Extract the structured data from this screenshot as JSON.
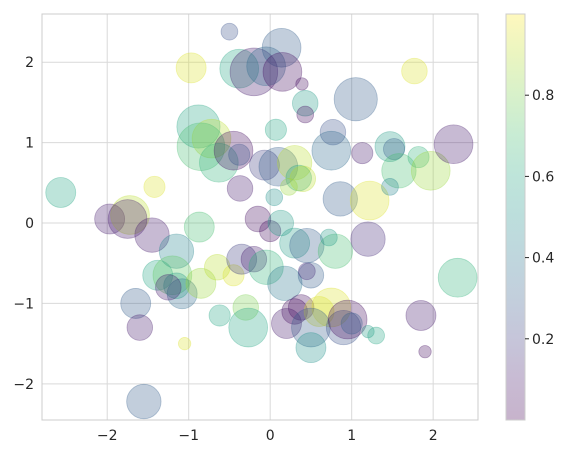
{
  "chart_data": {
    "type": "scatter",
    "title": "",
    "xlabel": "",
    "ylabel": "",
    "xlim": [
      -2.8,
      2.55
    ],
    "ylim": [
      -2.45,
      2.6
    ],
    "xticks": [
      "−2",
      "−1",
      "0",
      "1",
      "2"
    ],
    "xtick_values": [
      -2,
      -1,
      0,
      1,
      2
    ],
    "yticks": [
      "−2",
      "−1",
      "0",
      "1",
      "2"
    ],
    "ytick_values": [
      -2,
      -1,
      0,
      1,
      2
    ],
    "grid": true,
    "colormap": "viridis",
    "alpha": 0.3,
    "colorbar": {
      "ticks": [
        "0.2",
        "0.4",
        "0.6",
        "0.8"
      ],
      "tick_values": [
        0.2,
        0.4,
        0.6,
        0.8
      ],
      "range": [
        0.0,
        1.0
      ]
    },
    "points": [
      {
        "x": -0.97,
        "y": 1.93,
        "size": 5,
        "color": 0.95
      },
      {
        "x": -0.5,
        "y": 2.38,
        "size": 2,
        "color": 0.25
      },
      {
        "x": -0.38,
        "y": 1.92,
        "size": 7,
        "color": 0.6
      },
      {
        "x": -0.2,
        "y": 1.88,
        "size": 9,
        "color": 0.1
      },
      {
        "x": -0.05,
        "y": 1.95,
        "size": 7,
        "color": 0.35
      },
      {
        "x": 0.14,
        "y": 2.18,
        "size": 7,
        "color": 0.3
      },
      {
        "x": 0.15,
        "y": 1.88,
        "size": 7,
        "color": 0.05
      },
      {
        "x": 0.39,
        "y": 1.73,
        "size": 1,
        "color": 0.05
      },
      {
        "x": 0.43,
        "y": 1.49,
        "size": 4,
        "color": 0.55
      },
      {
        "x": 0.43,
        "y": 1.35,
        "size": 2,
        "color": 0.05
      },
      {
        "x": 1.05,
        "y": 1.54,
        "size": 8,
        "color": 0.3
      },
      {
        "x": 1.77,
        "y": 1.89,
        "size": 4,
        "color": 0.95
      },
      {
        "x": -0.88,
        "y": 1.2,
        "size": 8,
        "color": 0.6
      },
      {
        "x": -0.72,
        "y": 1.05,
        "size": 7,
        "color": 0.9
      },
      {
        "x": -0.85,
        "y": 0.95,
        "size": 9,
        "color": 0.7
      },
      {
        "x": -0.63,
        "y": 0.75,
        "size": 7,
        "color": 0.65
      },
      {
        "x": -0.45,
        "y": 0.9,
        "size": 7,
        "color": 0.05
      },
      {
        "x": -0.38,
        "y": 0.85,
        "size": 3,
        "color": 0.25
      },
      {
        "x": 0.07,
        "y": 1.16,
        "size": 3,
        "color": 0.6
      },
      {
        "x": -0.07,
        "y": 0.72,
        "size": 5,
        "color": 0.2
      },
      {
        "x": 0.1,
        "y": 0.7,
        "size": 7,
        "color": 0.3
      },
      {
        "x": 0.3,
        "y": 0.75,
        "size": 6,
        "color": 0.9
      },
      {
        "x": 0.35,
        "y": 0.56,
        "size": 4,
        "color": 0.6
      },
      {
        "x": 0.4,
        "y": 0.55,
        "size": 4,
        "color": 0.9
      },
      {
        "x": 0.77,
        "y": 1.13,
        "size": 4,
        "color": 0.25
      },
      {
        "x": 0.75,
        "y": 0.9,
        "size": 7,
        "color": 0.35
      },
      {
        "x": 1.13,
        "y": 0.87,
        "size": 3,
        "color": 0.1
      },
      {
        "x": 1.47,
        "y": 0.95,
        "size": 5,
        "color": 0.55
      },
      {
        "x": 1.52,
        "y": 0.92,
        "size": 3,
        "color": 0.3
      },
      {
        "x": 1.58,
        "y": 0.65,
        "size": 6,
        "color": 0.7
      },
      {
        "x": 1.82,
        "y": 0.82,
        "size": 3,
        "color": 0.65
      },
      {
        "x": 1.97,
        "y": 0.65,
        "size": 7,
        "color": 0.85
      },
      {
        "x": 2.25,
        "y": 0.98,
        "size": 7,
        "color": 0.1
      },
      {
        "x": -2.57,
        "y": 0.38,
        "size": 5,
        "color": 0.6
      },
      {
        "x": -1.42,
        "y": 0.45,
        "size": 3,
        "color": 0.95
      },
      {
        "x": -0.37,
        "y": 0.43,
        "size": 4,
        "color": 0.1
      },
      {
        "x": 0.05,
        "y": 0.32,
        "size": 2,
        "color": 0.5
      },
      {
        "x": 0.23,
        "y": 0.45,
        "size": 2,
        "color": 0.85
      },
      {
        "x": 0.86,
        "y": 0.3,
        "size": 6,
        "color": 0.3
      },
      {
        "x": 1.22,
        "y": 0.28,
        "size": 7,
        "color": 0.95
      },
      {
        "x": 1.47,
        "y": 0.45,
        "size": 2,
        "color": 0.45
      },
      {
        "x": -1.97,
        "y": 0.05,
        "size": 5,
        "color": 0.1
      },
      {
        "x": -1.72,
        "y": 0.1,
        "size": 7,
        "color": 0.9
      },
      {
        "x": -1.75,
        "y": 0.05,
        "size": 7,
        "color": 0.1
      },
      {
        "x": -1.45,
        "y": -0.15,
        "size": 6,
        "color": 0.1
      },
      {
        "x": -1.15,
        "y": -0.35,
        "size": 6,
        "color": 0.45
      },
      {
        "x": -0.87,
        "y": -0.05,
        "size": 5,
        "color": 0.7
      },
      {
        "x": -0.15,
        "y": 0.05,
        "size": 4,
        "color": 0.05
      },
      {
        "x": 0.0,
        "y": -0.1,
        "size": 3,
        "color": 0.05
      },
      {
        "x": 0.13,
        "y": 0.0,
        "size": 4,
        "color": 0.55
      },
      {
        "x": 0.3,
        "y": -0.25,
        "size": 5,
        "color": 0.55
      },
      {
        "x": 0.45,
        "y": -0.28,
        "size": 6,
        "color": 0.3
      },
      {
        "x": 0.8,
        "y": -0.35,
        "size": 6,
        "color": 0.7
      },
      {
        "x": 1.2,
        "y": -0.2,
        "size": 6,
        "color": 0.15
      },
      {
        "x": 0.72,
        "y": -0.18,
        "size": 2,
        "color": 0.55
      },
      {
        "x": 2.3,
        "y": -0.68,
        "size": 7,
        "color": 0.65
      },
      {
        "x": -1.38,
        "y": -0.65,
        "size": 5,
        "color": 0.6
      },
      {
        "x": -1.2,
        "y": -0.65,
        "size": 7,
        "color": 0.75
      },
      {
        "x": -1.08,
        "y": -0.88,
        "size": 5,
        "color": 0.35
      },
      {
        "x": -1.15,
        "y": -0.78,
        "size": 4,
        "color": 0.55
      },
      {
        "x": -1.25,
        "y": -0.8,
        "size": 4,
        "color": 0.1
      },
      {
        "x": -0.85,
        "y": -0.75,
        "size": 5,
        "color": 0.85
      },
      {
        "x": -0.65,
        "y": -0.55,
        "size": 4,
        "color": 0.9
      },
      {
        "x": -0.45,
        "y": -0.65,
        "size": 3,
        "color": 0.95
      },
      {
        "x": -0.35,
        "y": -0.45,
        "size": 5,
        "color": 0.2
      },
      {
        "x": -0.2,
        "y": -0.45,
        "size": 4,
        "color": 0.1
      },
      {
        "x": -0.05,
        "y": -0.55,
        "size": 6,
        "color": 0.65
      },
      {
        "x": 0.18,
        "y": -0.75,
        "size": 6,
        "color": 0.4
      },
      {
        "x": 0.5,
        "y": -0.65,
        "size": 4,
        "color": 0.3
      },
      {
        "x": 0.45,
        "y": -0.6,
        "size": 2,
        "color": 0.15
      },
      {
        "x": -1.65,
        "y": -1.0,
        "size": 5,
        "color": 0.3
      },
      {
        "x": -1.6,
        "y": -1.3,
        "size": 4,
        "color": 0.1
      },
      {
        "x": -0.62,
        "y": -1.15,
        "size": 3,
        "color": 0.6
      },
      {
        "x": -0.3,
        "y": -1.05,
        "size": 4,
        "color": 0.8
      },
      {
        "x": -0.27,
        "y": -1.3,
        "size": 7,
        "color": 0.6
      },
      {
        "x": 0.2,
        "y": -1.25,
        "size": 5,
        "color": 0.1
      },
      {
        "x": 0.3,
        "y": -1.1,
        "size": 4,
        "color": 0.05
      },
      {
        "x": 0.38,
        "y": -1.05,
        "size": 4,
        "color": 0.05
      },
      {
        "x": 0.6,
        "y": -1.1,
        "size": 5,
        "color": 0.95
      },
      {
        "x": 0.75,
        "y": -1.05,
        "size": 7,
        "color": 0.95
      },
      {
        "x": 0.5,
        "y": -1.3,
        "size": 7,
        "color": 0.3
      },
      {
        "x": 0.5,
        "y": -1.55,
        "size": 5,
        "color": 0.5
      },
      {
        "x": 0.9,
        "y": -1.3,
        "size": 6,
        "color": 0.25
      },
      {
        "x": 0.95,
        "y": -1.2,
        "size": 7,
        "color": 0.05
      },
      {
        "x": 1.0,
        "y": -1.25,
        "size": 3,
        "color": 0.3
      },
      {
        "x": 1.2,
        "y": -1.35,
        "size": 1,
        "color": 0.55
      },
      {
        "x": 1.3,
        "y": -1.4,
        "size": 2,
        "color": 0.6
      },
      {
        "x": 1.85,
        "y": -1.15,
        "size": 5,
        "color": 0.1
      },
      {
        "x": 1.9,
        "y": -1.6,
        "size": 1,
        "color": 0.05
      },
      {
        "x": -1.05,
        "y": -1.5,
        "size": 1,
        "color": 0.95
      },
      {
        "x": -1.55,
        "y": -2.22,
        "size": 6,
        "color": 0.3
      }
    ]
  }
}
